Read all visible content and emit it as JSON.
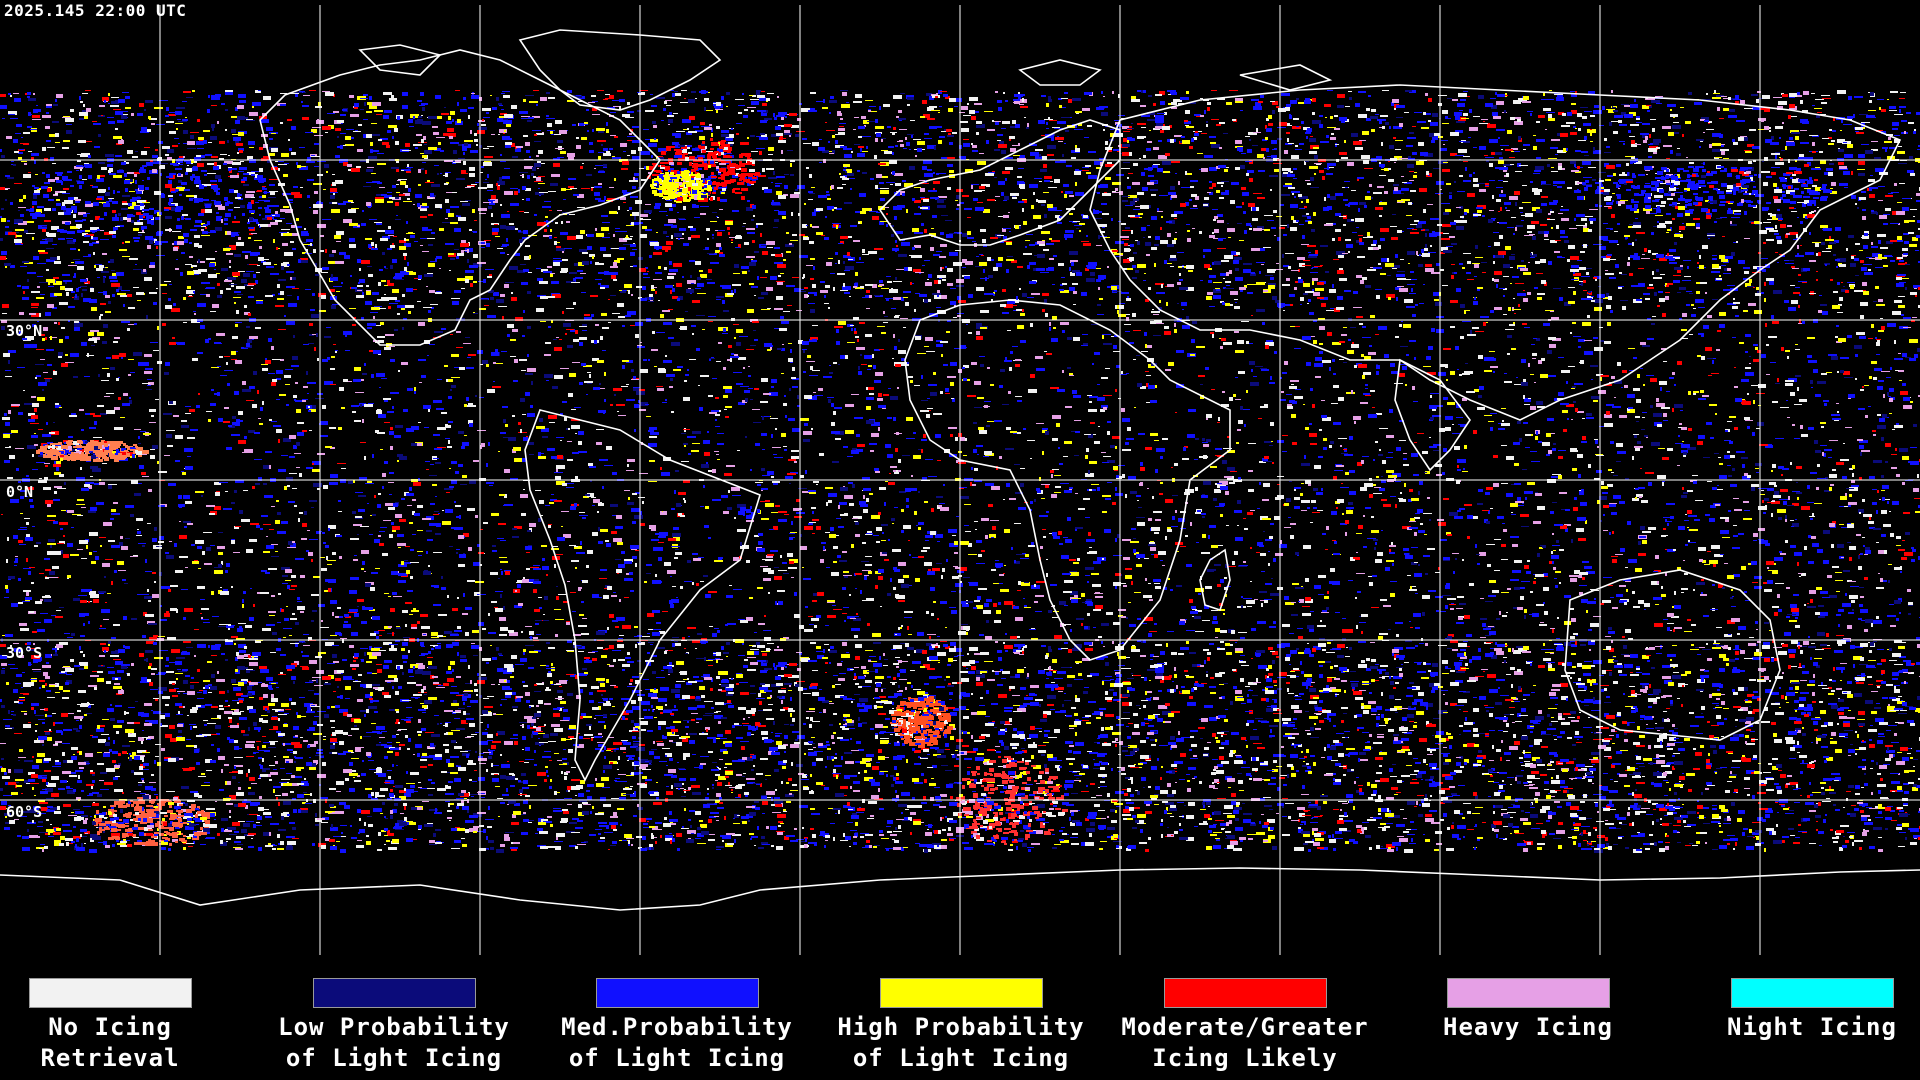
{
  "header": {
    "timestamp": "2025.145 22:00 UTC"
  },
  "latitude_labels": [
    "30°N",
    "0°N",
    "30°S",
    "60°S"
  ],
  "legend": [
    {
      "label": "No Icing\nRetrieval",
      "color": "#f2f2f2"
    },
    {
      "label": "Low Probability\nof Light Icing",
      "color": "#0b0b7a"
    },
    {
      "label": "Med.Probability\nof Light Icing",
      "color": "#1010ff"
    },
    {
      "label": "High Probability\nof Light Icing",
      "color": "#ffff00"
    },
    {
      "label": "Moderate/Greater\nIcing Likely",
      "color": "#ff0000"
    },
    {
      "label": "Heavy Icing",
      "color": "#e6a0e6"
    },
    {
      "label": "Night Icing",
      "color": "#00ffff"
    }
  ],
  "map": {
    "projection": "equirectangular",
    "grid_color": "#ffffff",
    "coastline_color": "#ffffff"
  }
}
